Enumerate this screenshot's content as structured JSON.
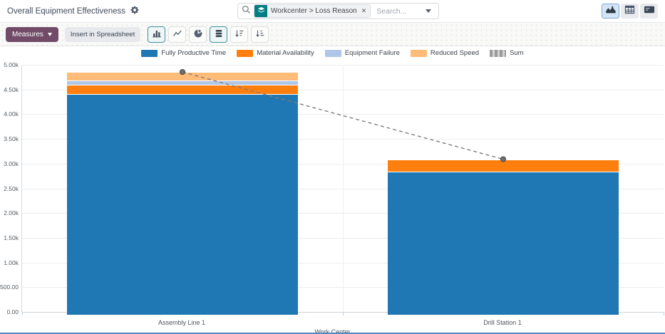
{
  "header": {
    "title": "Overall Equipment Effectiveness",
    "search": {
      "facet_label": "Workcenter > Loss Reason",
      "placeholder": "Search..."
    }
  },
  "toolbar": {
    "measures_label": "Measures",
    "insert_spreadsheet_label": "Insert in Spreadsheet"
  },
  "colors": {
    "measures_button": "#714b67",
    "facet_icon_bg": "#017e84",
    "charttype_active_border": "#43939b",
    "view_active_bg": "#d4e5f7"
  },
  "chart_data": {
    "type": "bar",
    "stacked": true,
    "categories": [
      "Assembly Line 1",
      "Drill Station 1"
    ],
    "series": [
      {
        "name": "Fully Productive Time",
        "color": "#1f77b4",
        "values": [
          4410,
          2840
        ]
      },
      {
        "name": "Material Availability",
        "color": "#ff7f0e",
        "values": [
          185,
          250
        ]
      },
      {
        "name": "Equipment Failure",
        "color": "#aec7e8",
        "values": [
          95,
          0
        ]
      },
      {
        "name": "Reduced Speed",
        "color": "#ffbb78",
        "values": [
          165,
          0
        ]
      }
    ],
    "line_series": {
      "name": "Sum",
      "color": "#7d7d7d",
      "style": "dashed",
      "values": [
        4855,
        3090
      ]
    },
    "xlabel": "Work Center",
    "ylim": [
      0,
      5000
    ],
    "ytick_step": 500,
    "ytick_labels": [
      "0.00",
      "500.00",
      "1.00k",
      "1.50k",
      "2.00k",
      "2.50k",
      "3.00k",
      "3.50k",
      "4.00k",
      "4.50k",
      "5.00k"
    ],
    "grid": true,
    "legend_position": "top"
  }
}
